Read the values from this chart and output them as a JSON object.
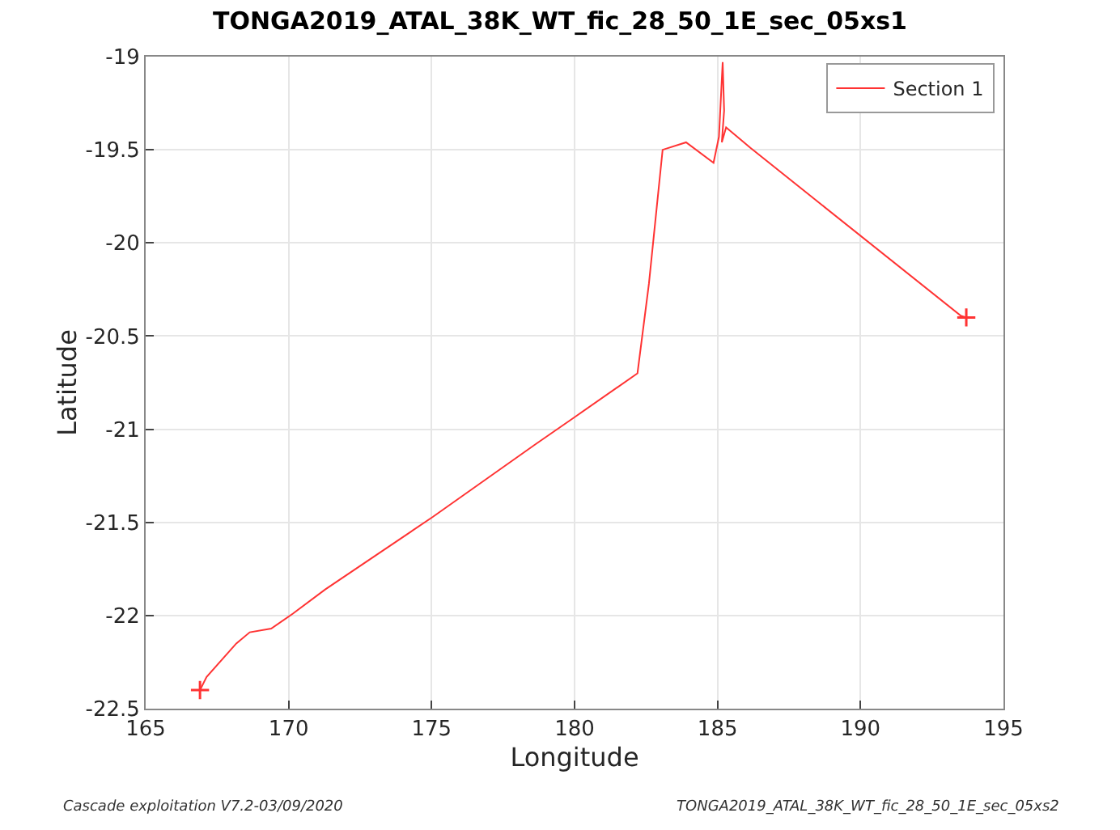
{
  "chart_data": {
    "type": "line",
    "title": "TONGA2019_ATAL_38K_WT_fic_28_50_1E_sec_05xs1",
    "xlabel": "Longitude",
    "ylabel": "Latitude",
    "annotations": [
      "Cascade exploitation V7.2-03/09/2020",
      "TONGA2019_ATAL_38K_WT_fic_28_50_1E_sec_05xs2"
    ],
    "series": [
      {
        "name": "Section 1",
        "color": "#ff3333",
        "x": [
          166.9,
          167.13,
          168.17,
          168.64,
          169.39,
          170.15,
          171.28,
          175.05,
          178.64,
          180.05,
          182.2,
          182.6,
          183.08,
          183.9,
          184.86,
          185.05,
          185.18,
          185.23,
          185.15,
          185.3,
          186.15,
          193.5,
          193.7
        ],
        "values": [
          -22.4,
          -22.33,
          -22.15,
          -22.09,
          -22.07,
          -21.99,
          -21.86,
          -21.47,
          -21.08,
          -20.93,
          -20.7,
          -20.22,
          -19.5,
          -19.46,
          -19.57,
          -19.43,
          -19.03,
          -19.29,
          -19.46,
          -19.38,
          -19.49,
          -20.39,
          -20.4
        ]
      },
      {
        "type": "scatter",
        "marker": "cross",
        "color": "#ff3333",
        "x": [
          166.9,
          193.7
        ],
        "values": [
          -22.4,
          -20.4
        ]
      }
    ],
    "xlim": [
      165,
      195
    ],
    "xticks": [
      165,
      170,
      175,
      180,
      185,
      190,
      195
    ],
    "ylim": [
      -22.5,
      -19
    ],
    "yticks": [
      -22.5,
      -22,
      -21.5,
      -21,
      -20.5,
      -20,
      -19.5,
      -19
    ],
    "grid": true,
    "legend": "top right",
    "line_style": "solid"
  }
}
